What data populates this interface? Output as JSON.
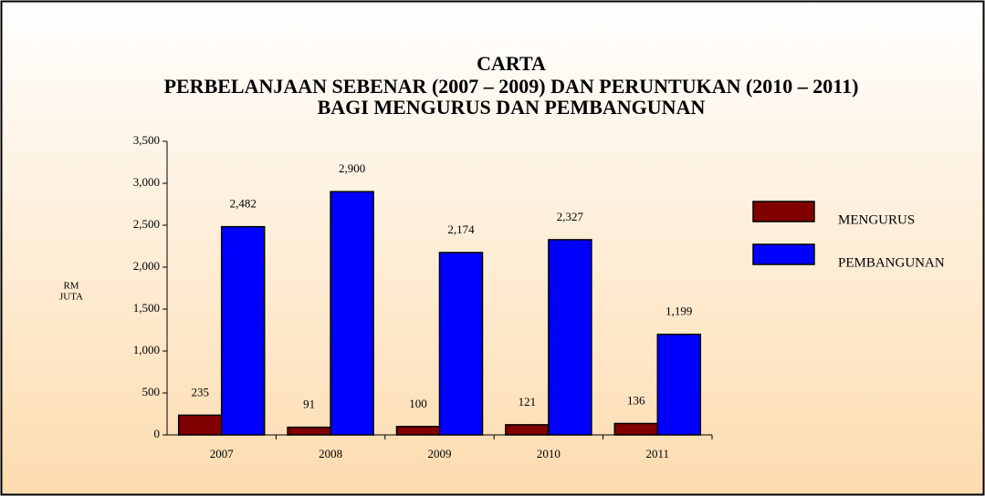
{
  "chart_data": {
    "type": "bar",
    "title": [
      "CARTA",
      "PERBELANJAAN SEBENAR (2007 – 2009) DAN PERUNTUKAN (2010 – 2011)",
      "BAGI MENGURUS DAN PEMBANGUNAN"
    ],
    "y_label": [
      "RM",
      "JUTA"
    ],
    "categories": [
      "2007",
      "2008",
      "2009",
      "2010",
      "2011"
    ],
    "series": [
      {
        "name": "MENGURUS",
        "color": "#800000",
        "values": [
          235,
          91,
          100,
          121,
          136
        ],
        "value_labels": [
          "235",
          "91",
          "100",
          "121",
          "136"
        ]
      },
      {
        "name": "PEMBANGUNAN",
        "color": "#0000ff",
        "values": [
          2482,
          2900,
          2174,
          2327,
          1199
        ],
        "value_labels": [
          "2,482",
          "2,900",
          "2,174",
          "2,327",
          "1,199"
        ]
      }
    ],
    "ylim": [
      0,
      3500
    ],
    "yticks": [
      0,
      {
        "value": 500,
        "label": "500"
      },
      {
        "value": 1000,
        "label": "1,000"
      },
      {
        "value": 1500,
        "label": "1,500"
      },
      {
        "value": 2000,
        "label": "2,000"
      },
      {
        "value": 2500,
        "label": "2,500"
      },
      {
        "value": 3000,
        "label": "3,000"
      },
      {
        "value": 3500,
        "label": "3,500"
      }
    ],
    "legend": "right",
    "grid": false
  }
}
